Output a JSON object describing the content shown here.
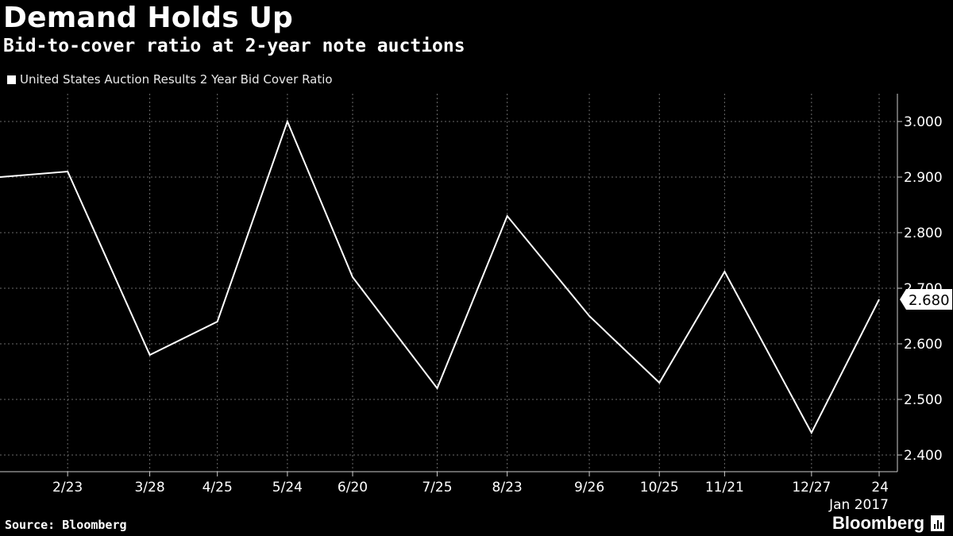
{
  "title": "Demand Holds Up",
  "subtitle": "Bid-to-cover ratio at 2-year note auctions",
  "legend": {
    "label": "United States Auction Results 2 Year Bid Cover Ratio"
  },
  "source": "Source: Bloomberg",
  "brand": {
    "name": "Bloomberg",
    "icon": "bar-chart-icon"
  },
  "colors": {
    "background": "#000000",
    "line": "#ffffff",
    "grid": "#6a6a6a",
    "text": "#ffffff"
  },
  "chart_data": {
    "type": "line",
    "title": "Demand Holds Up",
    "subtitle": "Bid-to-cover ratio at 2-year note auctions",
    "series": [
      {
        "name": "United States Auction Results 2 Year Bid Cover Ratio",
        "x": [
          "2016-01-26",
          "2016-02-23",
          "2016-03-28",
          "2016-04-25",
          "2016-05-24",
          "2016-06-20",
          "2016-07-25",
          "2016-08-23",
          "2016-09-26",
          "2016-10-25",
          "2016-11-21",
          "2016-12-27",
          "2017-01-24"
        ],
        "values": [
          2.9,
          2.91,
          2.58,
          2.64,
          3.0,
          2.72,
          2.52,
          2.83,
          2.65,
          2.53,
          2.73,
          2.44,
          2.68
        ]
      }
    ],
    "x_tick_labels": [
      "2/23",
      "3/28",
      "4/25",
      "5/24",
      "6/20",
      "7/25",
      "8/23",
      "9/26",
      "10/25",
      "11/21",
      "12/27",
      "24"
    ],
    "x_sub_label": "Jan 2017",
    "y_tick_labels": [
      "2.400",
      "2.500",
      "2.600",
      "2.700",
      "2.800",
      "2.900",
      "3.000"
    ],
    "ylim": [
      2.37,
      3.05
    ],
    "last_value_label": "2.680",
    "grid": true,
    "legend_position": "top-left",
    "y_axis_position": "right"
  }
}
